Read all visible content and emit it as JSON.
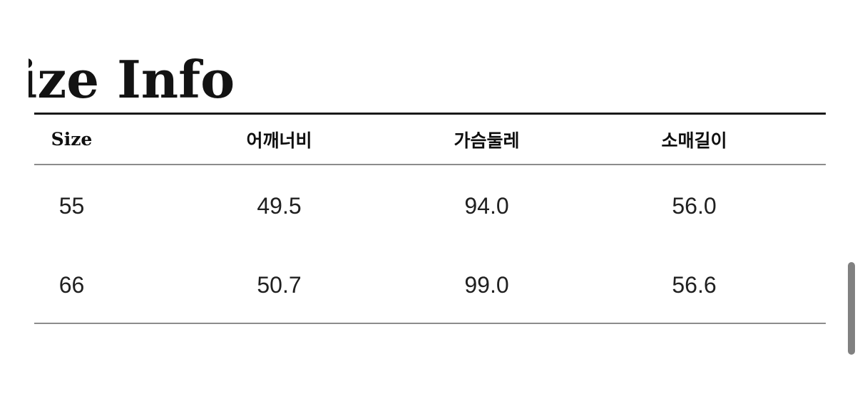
{
  "page": {
    "title": "Size Info",
    "background_color": "#ffffff"
  },
  "size_table": {
    "columns": [
      "Size",
      "어깨너비",
      "가슴둘레",
      "소매길이"
    ],
    "rows": [
      [
        "55",
        "49.5",
        "94.0",
        "56.0"
      ],
      [
        "66",
        "50.7",
        "99.0",
        "56.6"
      ]
    ]
  },
  "scrollbar": {
    "orientation": "vertical",
    "thumb_color": "#818181"
  },
  "colors": {
    "table_top_rule": "#191919",
    "table_gray_rule": "#8c8c8c",
    "header_text": "#0f0f0f",
    "cell_text": "#202020",
    "title_text": "#131313"
  }
}
